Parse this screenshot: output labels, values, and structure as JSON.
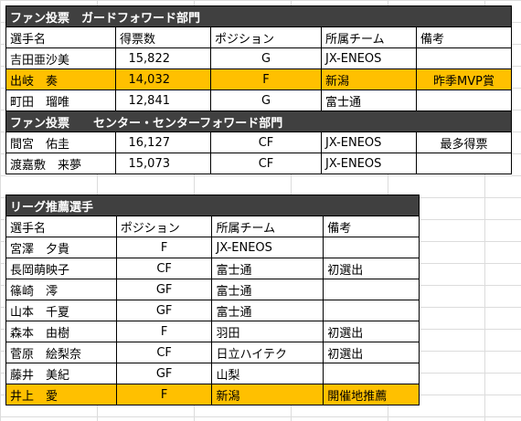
{
  "fan_vote_guard": {
    "title": "ファン投票　ガードフォワード部門",
    "headers": [
      "選手名",
      "得票数",
      "ポジション",
      "所属チーム",
      "備考"
    ],
    "rows": [
      {
        "name": "吉田亜沙美",
        "votes": "15,822",
        "pos": "G",
        "team": "JX-ENEOS",
        "note": ""
      },
      {
        "name": "出岐　奏",
        "votes": "14,032",
        "pos": "F",
        "team": "新潟",
        "note": "昨季MVP賞"
      },
      {
        "name": "町田　瑠唯",
        "votes": "12,841",
        "pos": "G",
        "team": "富士通",
        "note": ""
      }
    ]
  },
  "fan_vote_center": {
    "title": "ファン投票　　センター・センターフォワード部門",
    "rows": [
      {
        "name": "間宮　佑圭",
        "votes": "16,127",
        "pos": "CF",
        "team": "JX-ENEOS",
        "note": "最多得票"
      },
      {
        "name": "渡嘉敷　来夢",
        "votes": "15,073",
        "pos": "CF",
        "team": "JX-ENEOS",
        "note": ""
      }
    ]
  },
  "league_recommend": {
    "title": "リーグ推薦選手",
    "headers": [
      "選手名",
      "ポジション",
      "所属チーム",
      "備考"
    ],
    "rows": [
      {
        "name": "宮澤　夕貴",
        "pos": "F",
        "team": "JX-ENEOS",
        "note": ""
      },
      {
        "name": "長岡萌映子",
        "pos": "CF",
        "team": "富士通",
        "note": "初選出"
      },
      {
        "name": "篠崎　澪",
        "pos": "GF",
        "team": "富士通",
        "note": ""
      },
      {
        "name": "山本　千夏",
        "pos": "GF",
        "team": "富士通",
        "note": ""
      },
      {
        "name": "森本　由樹",
        "pos": "F",
        "team": "羽田",
        "note": "初選出"
      },
      {
        "name": "菅原　絵梨奈",
        "pos": "CF",
        "team": "日立ハイテク",
        "note": "初選出"
      },
      {
        "name": "藤井　美紀",
        "pos": "GF",
        "team": "山梨",
        "note": ""
      },
      {
        "name": "井上　愛",
        "pos": "F",
        "team": "新潟",
        "note": "開催地推薦"
      }
    ]
  },
  "colors": {
    "header_bg": "#404040",
    "highlight": "#ffc000",
    "grid": "#d9d9d9"
  }
}
